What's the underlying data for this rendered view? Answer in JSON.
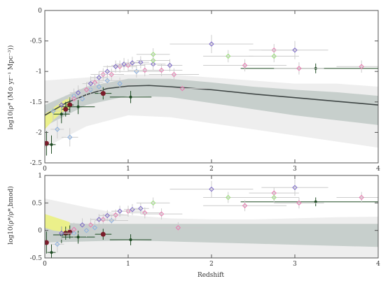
{
  "colors": {
    "outer_band": "#eeeeee",
    "inner_band": "#c7cfcc",
    "model_line": "#3f4645",
    "axes": "#555555",
    "grid_errorbar": "#cccccc",
    "dark_green": "#1d4a22",
    "dark_red": "#7a1b2a",
    "light_blue": "#8ab0e0",
    "pink": "#e77ab0",
    "violet": "#7a66c8",
    "light_green": "#9be07a",
    "yellow_band": "#ebf08a"
  },
  "chart_data": [
    {
      "type": "scatter",
      "name": "upper-panel",
      "xlabel": "",
      "ylabel": "log10(ρ* (M⊙ yr⁻¹ Mpc⁻³))",
      "xlim": [
        0,
        4
      ],
      "ylim": [
        -2.5,
        0
      ],
      "xticks": [
        "0",
        "1",
        "2",
        "3",
        "4"
      ],
      "yticks": [
        "0",
        "-0.5",
        "-1",
        "-1.5",
        "-2",
        "-2.5"
      ],
      "outer_band": {
        "x": [
          0,
          0.5,
          1,
          1.5,
          2,
          2.5,
          3,
          3.5,
          4
        ],
        "lo": [
          -2.25,
          -1.9,
          -1.72,
          -1.75,
          -1.85,
          -1.95,
          -2.05,
          -2.15,
          -2.25
        ],
        "hi": [
          -1.15,
          -1.1,
          -1.05,
          -1.05,
          -1.1,
          -1.15,
          -1.2,
          -1.2,
          -1.25
        ]
      },
      "inner_band": {
        "x": [
          0,
          0.5,
          1,
          1.5,
          2,
          2.5,
          3,
          3.5,
          4
        ],
        "lo": [
          -1.9,
          -1.55,
          -1.4,
          -1.42,
          -1.52,
          -1.62,
          -1.72,
          -1.8,
          -1.88
        ],
        "hi": [
          -1.55,
          -1.25,
          -1.12,
          -1.12,
          -1.18,
          -1.25,
          -1.3,
          -1.34,
          -1.4
        ]
      },
      "model_line": {
        "x": [
          0,
          0.25,
          0.5,
          0.75,
          1,
          1.25,
          1.5,
          2,
          2.5,
          3,
          3.5,
          4
        ],
        "y": [
          -1.72,
          -1.52,
          -1.38,
          -1.28,
          -1.24,
          -1.23,
          -1.25,
          -1.3,
          -1.37,
          -1.43,
          -1.49,
          -1.55
        ]
      },
      "yellow_band": {
        "x": [
          0,
          0.1,
          0.2,
          0.3
        ],
        "lo": [
          -1.95,
          -1.8,
          -1.68,
          -1.6
        ],
        "hi": [
          -1.7,
          -1.6,
          -1.5,
          -1.42
        ]
      },
      "points": [
        {
          "x": 0.02,
          "y": -2.18,
          "series": "dark_red",
          "xerr": 0.02,
          "yerr": 0.2
        },
        {
          "x": 0.25,
          "y": -1.62,
          "series": "dark_red",
          "xerr": 0.05,
          "yerr": 0.12
        },
        {
          "x": 0.3,
          "y": -1.55,
          "series": "dark_red",
          "xerr": 0.05,
          "yerr": 0.12
        },
        {
          "x": 0.7,
          "y": -1.36,
          "series": "dark_red",
          "xerr": 0.1,
          "yerr": 0.1
        },
        {
          "x": 0.08,
          "y": -2.2,
          "series": "dark_green",
          "xerr": 0.05,
          "yerr": 0.15
        },
        {
          "x": 0.2,
          "y": -1.7,
          "series": "dark_green",
          "xerr": 0.1,
          "yerr": 0.15
        },
        {
          "x": 0.4,
          "y": -1.58,
          "series": "dark_green",
          "xerr": 0.2,
          "yerr": 0.12
        },
        {
          "x": 1.03,
          "y": -1.42,
          "series": "dark_green",
          "xerr": 0.25,
          "yerr": 0.1
        },
        {
          "x": 3.25,
          "y": -0.95,
          "series": "dark_green",
          "xerr": 0.9,
          "yerr": 0.08
        },
        {
          "x": 0.1,
          "y": -1.65,
          "series": "light_blue",
          "xerr": 0.08,
          "yerr": 0.15
        },
        {
          "x": 0.15,
          "y": -1.95,
          "series": "light_blue",
          "xerr": 0.08,
          "yerr": 0.15
        },
        {
          "x": 0.3,
          "y": -2.08,
          "series": "light_blue",
          "xerr": 0.1,
          "yerr": 0.15
        },
        {
          "x": 0.35,
          "y": -1.4,
          "series": "light_blue",
          "xerr": 0.1,
          "yerr": 0.12
        },
        {
          "x": 0.45,
          "y": -1.45,
          "series": "light_blue",
          "xerr": 0.15,
          "yerr": 0.12
        },
        {
          "x": 0.55,
          "y": -1.3,
          "series": "light_blue",
          "xerr": 0.15,
          "yerr": 0.12
        },
        {
          "x": 0.65,
          "y": -1.25,
          "series": "light_blue",
          "xerr": 0.15,
          "yerr": 0.12
        },
        {
          "x": 0.75,
          "y": -1.15,
          "series": "light_blue",
          "xerr": 0.2,
          "yerr": 0.1
        },
        {
          "x": 0.9,
          "y": -1.2,
          "series": "light_blue",
          "xerr": 0.2,
          "yerr": 0.1
        },
        {
          "x": 1.1,
          "y": -1.0,
          "series": "light_blue",
          "xerr": 0.3,
          "yerr": 0.1
        },
        {
          "x": 0.35,
          "y": -1.45,
          "series": "pink",
          "xerr": 0.1,
          "yerr": 0.12
        },
        {
          "x": 0.5,
          "y": -1.3,
          "series": "pink",
          "xerr": 0.1,
          "yerr": 0.12
        },
        {
          "x": 0.6,
          "y": -1.18,
          "series": "pink",
          "xerr": 0.1,
          "yerr": 0.12
        },
        {
          "x": 0.7,
          "y": -1.05,
          "series": "pink",
          "xerr": 0.15,
          "yerr": 0.1
        },
        {
          "x": 0.8,
          "y": -1.05,
          "series": "pink",
          "xerr": 0.15,
          "yerr": 0.1
        },
        {
          "x": 0.9,
          "y": -0.92,
          "series": "pink",
          "xerr": 0.2,
          "yerr": 0.1
        },
        {
          "x": 1.0,
          "y": -0.9,
          "series": "pink",
          "xerr": 0.2,
          "yerr": 0.1
        },
        {
          "x": 1.2,
          "y": -0.98,
          "series": "pink",
          "xerr": 0.2,
          "yerr": 0.1
        },
        {
          "x": 1.4,
          "y": -0.98,
          "series": "pink",
          "xerr": 0.25,
          "yerr": 0.1
        },
        {
          "x": 1.55,
          "y": -1.05,
          "series": "pink",
          "xerr": 0.3,
          "yerr": 0.1
        },
        {
          "x": 1.65,
          "y": -1.28,
          "series": "pink",
          "xerr": 0.3,
          "yerr": 0.1
        },
        {
          "x": 2.4,
          "y": -0.9,
          "series": "pink",
          "xerr": 0.5,
          "yerr": 0.1
        },
        {
          "x": 2.75,
          "y": -0.65,
          "series": "pink",
          "xerr": 0.3,
          "yerr": 0.1
        },
        {
          "x": 3.05,
          "y": -0.95,
          "series": "pink",
          "xerr": 0.3,
          "yerr": 0.1
        },
        {
          "x": 3.8,
          "y": -0.92,
          "series": "pink",
          "xerr": 0.3,
          "yerr": 0.1
        },
        {
          "x": 0.2,
          "y": -1.55,
          "series": "violet",
          "xerr": 0.05,
          "yerr": 0.12
        },
        {
          "x": 0.4,
          "y": -1.35,
          "series": "violet",
          "xerr": 0.1,
          "yerr": 0.12
        },
        {
          "x": 0.55,
          "y": -1.2,
          "series": "violet",
          "xerr": 0.1,
          "yerr": 0.12
        },
        {
          "x": 0.65,
          "y": -1.1,
          "series": "violet",
          "xerr": 0.1,
          "yerr": 0.1
        },
        {
          "x": 0.75,
          "y": -1.0,
          "series": "violet",
          "xerr": 0.1,
          "yerr": 0.1
        },
        {
          "x": 0.85,
          "y": -0.92,
          "series": "violet",
          "xerr": 0.1,
          "yerr": 0.1
        },
        {
          "x": 0.95,
          "y": -0.88,
          "series": "violet",
          "xerr": 0.1,
          "yerr": 0.1
        },
        {
          "x": 1.05,
          "y": -0.86,
          "series": "violet",
          "xerr": 0.1,
          "yerr": 0.1
        },
        {
          "x": 1.15,
          "y": -0.85,
          "series": "violet",
          "xerr": 0.1,
          "yerr": 0.1
        },
        {
          "x": 1.3,
          "y": -0.88,
          "series": "violet",
          "xerr": 0.15,
          "yerr": 0.1
        },
        {
          "x": 1.5,
          "y": -0.9,
          "series": "violet",
          "xerr": 0.15,
          "yerr": 0.1
        },
        {
          "x": 2.0,
          "y": -0.55,
          "series": "violet",
          "xerr": 0.5,
          "yerr": 0.15
        },
        {
          "x": 3.0,
          "y": -0.65,
          "series": "violet",
          "xerr": 0.4,
          "yerr": 0.15
        },
        {
          "x": 1.3,
          "y": -0.82,
          "series": "light_green",
          "xerr": 0.2,
          "yerr": 0.1
        },
        {
          "x": 1.3,
          "y": -0.72,
          "series": "light_green",
          "xerr": 0.2,
          "yerr": 0.1
        },
        {
          "x": 2.2,
          "y": -0.75,
          "series": "light_green",
          "xerr": 0.3,
          "yerr": 0.1
        },
        {
          "x": 2.75,
          "y": -0.75,
          "series": "light_green",
          "xerr": 0.3,
          "yerr": 0.1
        }
      ]
    },
    {
      "type": "scatter",
      "name": "lower-panel",
      "xlabel": "Redshift",
      "ylabel": "log10(ρ*/ρ*,bmod)",
      "xlim": [
        0,
        4
      ],
      "ylim": [
        -0.5,
        1.0
      ],
      "xticks": [
        "0",
        "1",
        "2",
        "3",
        "4"
      ],
      "yticks": [
        "1",
        "0.5",
        "0",
        "-0.5"
      ],
      "outer_band": {
        "x": [
          0,
          0.5,
          1,
          1.5,
          2,
          2.5,
          3,
          3.5,
          4
        ],
        "lo": [
          -0.5,
          -0.5,
          -0.5,
          -0.5,
          -0.5,
          -0.5,
          -0.5,
          -0.5,
          -0.5
        ],
        "hi": [
          0.58,
          0.42,
          0.28,
          0.22,
          0.2,
          0.2,
          0.22,
          0.24,
          0.25
        ]
      },
      "inner_band": {
        "x": [
          0,
          0.5,
          1,
          1.5,
          2,
          2.5,
          3,
          3.5,
          4
        ],
        "lo": [
          -0.22,
          -0.2,
          -0.18,
          -0.2,
          -0.22,
          -0.24,
          -0.26,
          -0.28,
          -0.3
        ],
        "hi": [
          0.15,
          0.12,
          0.12,
          0.12,
          0.12,
          0.12,
          0.12,
          0.12,
          0.12
        ]
      },
      "yellow_band": {
        "x": [
          0,
          0.1,
          0.2,
          0.3
        ],
        "lo": [
          0.05,
          0.0,
          -0.02,
          -0.05
        ],
        "hi": [
          0.3,
          0.25,
          0.2,
          0.15
        ]
      },
      "points": [
        {
          "x": 0.02,
          "y": -0.22,
          "series": "dark_red",
          "xerr": 0.02,
          "yerr": 0.2
        },
        {
          "x": 0.25,
          "y": -0.05,
          "series": "dark_red",
          "xerr": 0.05,
          "yerr": 0.12
        },
        {
          "x": 0.3,
          "y": -0.03,
          "series": "dark_red",
          "xerr": 0.05,
          "yerr": 0.12
        },
        {
          "x": 0.7,
          "y": -0.07,
          "series": "dark_red",
          "xerr": 0.1,
          "yerr": 0.1
        },
        {
          "x": 0.08,
          "y": -0.4,
          "series": "dark_green",
          "xerr": 0.05,
          "yerr": 0.15
        },
        {
          "x": 0.2,
          "y": -0.08,
          "series": "dark_green",
          "xerr": 0.1,
          "yerr": 0.15
        },
        {
          "x": 0.4,
          "y": -0.12,
          "series": "dark_green",
          "xerr": 0.2,
          "yerr": 0.12
        },
        {
          "x": 1.03,
          "y": -0.17,
          "series": "dark_green",
          "xerr": 0.25,
          "yerr": 0.1
        },
        {
          "x": 3.25,
          "y": 0.52,
          "series": "dark_green",
          "xerr": 0.9,
          "yerr": 0.08
        },
        {
          "x": 0.15,
          "y": -0.25,
          "series": "light_blue",
          "xerr": 0.08,
          "yerr": 0.15
        },
        {
          "x": 0.35,
          "y": -0.05,
          "series": "light_blue",
          "xerr": 0.1,
          "yerr": 0.12
        },
        {
          "x": 0.5,
          "y": 0.0,
          "series": "light_blue",
          "xerr": 0.15,
          "yerr": 0.12
        },
        {
          "x": 0.6,
          "y": 0.05,
          "series": "light_blue",
          "xerr": 0.15,
          "yerr": 0.12
        },
        {
          "x": 0.8,
          "y": 0.18,
          "series": "light_blue",
          "xerr": 0.2,
          "yerr": 0.1
        },
        {
          "x": 0.35,
          "y": 0.02,
          "series": "pink",
          "xerr": 0.1,
          "yerr": 0.12
        },
        {
          "x": 0.55,
          "y": 0.1,
          "series": "pink",
          "xerr": 0.1,
          "yerr": 0.12
        },
        {
          "x": 0.7,
          "y": 0.2,
          "series": "pink",
          "xerr": 0.15,
          "yerr": 0.1
        },
        {
          "x": 0.85,
          "y": 0.28,
          "series": "pink",
          "xerr": 0.15,
          "yerr": 0.1
        },
        {
          "x": 1.0,
          "y": 0.35,
          "series": "pink",
          "xerr": 0.2,
          "yerr": 0.1
        },
        {
          "x": 1.2,
          "y": 0.32,
          "series": "pink",
          "xerr": 0.2,
          "yerr": 0.1
        },
        {
          "x": 1.4,
          "y": 0.3,
          "series": "pink",
          "xerr": 0.25,
          "yerr": 0.1
        },
        {
          "x": 1.6,
          "y": 0.05,
          "series": "pink",
          "xerr": 0.3,
          "yerr": 0.1
        },
        {
          "x": 2.4,
          "y": 0.45,
          "series": "pink",
          "xerr": 0.5,
          "yerr": 0.1
        },
        {
          "x": 2.75,
          "y": 0.68,
          "series": "pink",
          "xerr": 0.3,
          "yerr": 0.1
        },
        {
          "x": 3.05,
          "y": 0.5,
          "series": "pink",
          "xerr": 0.3,
          "yerr": 0.1
        },
        {
          "x": 3.8,
          "y": 0.6,
          "series": "pink",
          "xerr": 0.3,
          "yerr": 0.1
        },
        {
          "x": 0.2,
          "y": -0.05,
          "series": "violet",
          "xerr": 0.05,
          "yerr": 0.12
        },
        {
          "x": 0.45,
          "y": 0.1,
          "series": "violet",
          "xerr": 0.1,
          "yerr": 0.12
        },
        {
          "x": 0.65,
          "y": 0.2,
          "series": "violet",
          "xerr": 0.1,
          "yerr": 0.1
        },
        {
          "x": 0.75,
          "y": 0.27,
          "series": "violet",
          "xerr": 0.1,
          "yerr": 0.1
        },
        {
          "x": 0.9,
          "y": 0.35,
          "series": "violet",
          "xerr": 0.1,
          "yerr": 0.1
        },
        {
          "x": 1.05,
          "y": 0.38,
          "series": "violet",
          "xerr": 0.1,
          "yerr": 0.1
        },
        {
          "x": 1.15,
          "y": 0.4,
          "series": "violet",
          "xerr": 0.1,
          "yerr": 0.1
        },
        {
          "x": 2.0,
          "y": 0.75,
          "series": "violet",
          "xerr": 0.5,
          "yerr": 0.15
        },
        {
          "x": 3.0,
          "y": 0.78,
          "series": "violet",
          "xerr": 0.4,
          "yerr": 0.15
        },
        {
          "x": 1.3,
          "y": 0.5,
          "series": "light_green",
          "xerr": 0.2,
          "yerr": 0.1
        },
        {
          "x": 2.2,
          "y": 0.6,
          "series": "light_green",
          "xerr": 0.3,
          "yerr": 0.1
        },
        {
          "x": 2.75,
          "y": 0.6,
          "series": "light_green",
          "xerr": 0.3,
          "yerr": 0.1
        }
      ]
    }
  ]
}
